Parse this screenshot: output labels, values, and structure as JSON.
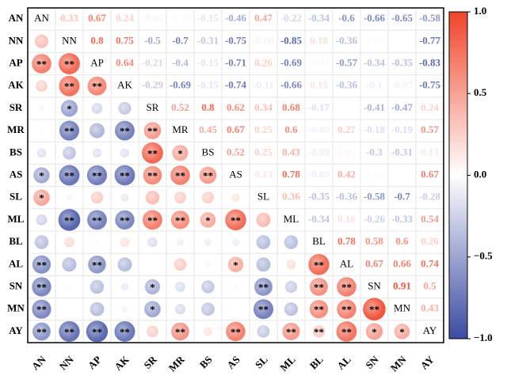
{
  "chart_data": {
    "type": "correlogram",
    "variables": [
      "AN",
      "NN",
      "AP",
      "AK",
      "SR",
      "MR",
      "BS",
      "AS",
      "SL",
      "ML",
      "BL",
      "AL",
      "SN",
      "MN",
      "AY"
    ],
    "correlations": [
      [
        0.33,
        0.67,
        0.24,
        -0.05,
        -0.02,
        -0.15,
        -0.46,
        0.47,
        -0.22,
        -0.34,
        -0.6,
        -0.66,
        -0.65,
        -0.58
      ],
      [
        0.8,
        0.75,
        -0.5,
        -0.7,
        -0.31,
        -0.75,
        -0.06,
        -0.85,
        0.18,
        -0.36,
        -0.03,
        0.01,
        -0.77
      ],
      [
        0.64,
        -0.21,
        -0.4,
        -0.15,
        -0.71,
        0.26,
        -0.69,
        -0.03,
        -0.57,
        -0.34,
        -0.35,
        -0.83
      ],
      [
        -0.29,
        -0.69,
        -0.15,
        -0.74,
        -0.11,
        -0.66,
        0.15,
        -0.36,
        -0.1,
        -0.07,
        -0.75
      ],
      [
        0.52,
        0.8,
        0.62,
        0.34,
        0.68,
        -0.17,
        0.01,
        -0.41,
        -0.47,
        0.24
      ],
      [
        0.45,
        0.67,
        0.25,
        0.6,
        -0.08,
        0.27,
        -0.18,
        -0.19,
        0.57
      ],
      [
        0.52,
        0.25,
        0.43,
        -0.09,
        0.05,
        -0.3,
        -0.31,
        0.13
      ],
      [
        0.13,
        0.78,
        -0.09,
        0.42,
        -0.03,
        -0.01,
        0.67
      ],
      [
        0.36,
        -0.35,
        -0.36,
        -0.58,
        -0.7,
        -0.28
      ],
      [
        -0.34,
        0.16,
        -0.26,
        -0.33,
        0.54
      ],
      [
        0.78,
        0.58,
        0.6,
        0.26
      ],
      [
        0.67,
        0.66,
        0.74
      ],
      [
        0.91,
        0.5
      ],
      [
        0.43
      ]
    ],
    "significance": [
      [],
      [
        null
      ],
      [
        "**",
        "**"
      ],
      [
        null,
        "**",
        "**"
      ],
      [
        null,
        "*",
        null,
        null
      ],
      [
        null,
        "**",
        null,
        "**",
        "**"
      ],
      [
        null,
        null,
        null,
        null,
        "**",
        "*"
      ],
      [
        "*",
        "**",
        "**",
        "**",
        "**",
        "**",
        "**"
      ],
      [
        "*",
        null,
        null,
        null,
        null,
        null,
        null,
        null
      ],
      [
        null,
        "**",
        "**",
        "**",
        "**",
        "**",
        "*",
        "**",
        null
      ],
      [
        null,
        null,
        null,
        null,
        null,
        null,
        null,
        null,
        null,
        null
      ],
      [
        "**",
        null,
        "**",
        null,
        null,
        null,
        null,
        "*",
        null,
        null,
        "**"
      ],
      [
        "**",
        null,
        null,
        null,
        "*",
        null,
        null,
        null,
        "**",
        null,
        "**",
        "**"
      ],
      [
        "**",
        null,
        null,
        null,
        "*",
        null,
        null,
        null,
        "**",
        null,
        "**",
        "**",
        "**"
      ],
      [
        "**",
        "**",
        "**",
        "**",
        null,
        "**",
        null,
        "**",
        null,
        "**",
        "**",
        "**",
        "*",
        "*"
      ]
    ],
    "colors": {
      "negative": "#3b4ba0",
      "zero": "#ffffff",
      "positive": "#f0452a"
    },
    "colorbar_lim": [
      -1,
      1
    ],
    "colorbar_ticks": [
      {
        "value": 1,
        "label": "1.0"
      },
      {
        "value": 0.5,
        "label": "0.5"
      },
      {
        "value": 0,
        "label": "0.0"
      },
      {
        "value": -0.5,
        "label": "−0.5"
      },
      {
        "value": -1,
        "label": "−1.0"
      }
    ]
  }
}
